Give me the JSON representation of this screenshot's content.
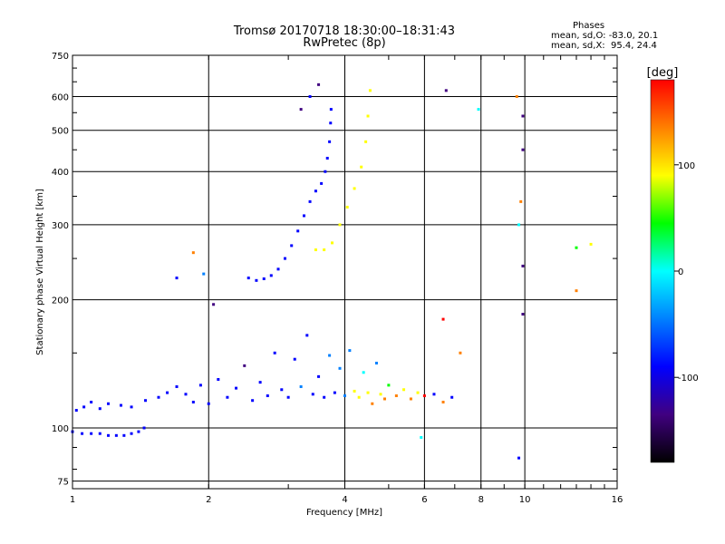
{
  "header": {
    "title_line1": "Tromsø 20170718 18:30:00–18:31:43",
    "title_line2": "RwPretec (8p)",
    "phases_title": "Phases",
    "phases_line1": "mean, sd,O: -83.0, 20.1",
    "phases_line2": "mean, sd,X:  95.4, 24.4"
  },
  "chart_data": {
    "type": "scatter",
    "xlabel": "Frequency [MHz]",
    "ylabel": "Stationary phase Virtual Height [km]",
    "xscale": "log",
    "yscale": "log",
    "xlim": [
      1,
      16
    ],
    "ylim": [
      72,
      750
    ],
    "xticks": [
      1,
      2,
      4,
      6,
      8,
      10,
      16
    ],
    "xtick_labels": [
      "1",
      "2",
      "4",
      "6",
      "8",
      "10",
      "16"
    ],
    "yticks": [
      75,
      100,
      200,
      300,
      400,
      500,
      600,
      750
    ],
    "ytick_labels": [
      "75",
      "100",
      "200",
      "300",
      "400",
      "500",
      "600",
      "750"
    ],
    "grid": true,
    "colorbar": {
      "label": "[deg]",
      "range": [
        -180,
        180
      ],
      "ticks": [
        100,
        0,
        -100
      ],
      "tick_labels": [
        "100",
        "0",
        "-100"
      ],
      "colors": [
        "#ff0000",
        "#ff8000",
        "#ffff00",
        "#00ff00",
        "#00ffff",
        "#0080ff",
        "#0000ff",
        "#400080",
        "#000000"
      ]
    },
    "points": [
      [
        1.0,
        98,
        -110
      ],
      [
        1.05,
        97,
        -100
      ],
      [
        1.1,
        97,
        -105
      ],
      [
        1.15,
        97,
        -100
      ],
      [
        1.2,
        96,
        -110
      ],
      [
        1.25,
        96,
        -105
      ],
      [
        1.3,
        96,
        -100
      ],
      [
        1.35,
        97,
        -110
      ],
      [
        1.4,
        98,
        -105
      ],
      [
        1.44,
        100,
        -100
      ],
      [
        1.02,
        110,
        -90
      ],
      [
        1.06,
        112,
        -85
      ],
      [
        1.1,
        115,
        -100
      ],
      [
        1.15,
        111,
        -95
      ],
      [
        1.2,
        114,
        -110
      ],
      [
        1.28,
        113,
        -90
      ],
      [
        1.35,
        112,
        -100
      ],
      [
        1.45,
        116,
        -85
      ],
      [
        1.55,
        118,
        -95
      ],
      [
        1.62,
        121,
        -90
      ],
      [
        1.7,
        125,
        -100
      ],
      [
        1.78,
        120,
        -80
      ],
      [
        1.85,
        115,
        -110
      ],
      [
        1.92,
        126,
        -95
      ],
      [
        2.0,
        114,
        -85
      ],
      [
        2.1,
        130,
        -100
      ],
      [
        2.2,
        118,
        -80
      ],
      [
        2.3,
        124,
        -90
      ],
      [
        2.4,
        140,
        -120
      ],
      [
        2.5,
        116,
        -85
      ],
      [
        2.6,
        128,
        -95
      ],
      [
        2.7,
        119,
        -70
      ],
      [
        2.8,
        150,
        -100
      ],
      [
        2.9,
        123,
        -85
      ],
      [
        3.0,
        118,
        -90
      ],
      [
        3.1,
        145,
        -110
      ],
      [
        3.2,
        125,
        -60
      ],
      [
        3.3,
        165,
        -80
      ],
      [
        3.4,
        120,
        -100
      ],
      [
        3.5,
        132,
        -70
      ],
      [
        3.6,
        118,
        -90
      ],
      [
        3.7,
        148,
        -50
      ],
      [
        3.8,
        121,
        -95
      ],
      [
        3.9,
        138,
        -40
      ],
      [
        4.0,
        119,
        -30
      ],
      [
        4.1,
        152,
        -60
      ],
      [
        4.2,
        122,
        90
      ],
      [
        4.3,
        118,
        110
      ],
      [
        4.4,
        135,
        -20
      ],
      [
        4.5,
        121,
        100
      ],
      [
        4.6,
        114,
        120
      ],
      [
        4.7,
        142,
        -40
      ],
      [
        4.8,
        120,
        95
      ],
      [
        4.9,
        117,
        140
      ],
      [
        5.0,
        126,
        60
      ],
      [
        5.2,
        119,
        130
      ],
      [
        5.4,
        123,
        80
      ],
      [
        5.6,
        117,
        150
      ],
      [
        5.8,
        121,
        90
      ],
      [
        6.0,
        119,
        160
      ],
      [
        6.3,
        120,
        -80
      ],
      [
        6.6,
        115,
        120
      ],
      [
        6.9,
        118,
        -100
      ],
      [
        2.45,
        225,
        -100
      ],
      [
        2.55,
        222,
        -110
      ],
      [
        2.65,
        224,
        -95
      ],
      [
        2.75,
        228,
        -105
      ],
      [
        2.85,
        236,
        -100
      ],
      [
        2.95,
        250,
        -95
      ],
      [
        3.05,
        268,
        -100
      ],
      [
        3.15,
        290,
        -105
      ],
      [
        3.25,
        315,
        -100
      ],
      [
        3.35,
        340,
        -95
      ],
      [
        3.45,
        360,
        -100
      ],
      [
        3.55,
        375,
        -105
      ],
      [
        3.62,
        400,
        -95
      ],
      [
        3.66,
        430,
        -100
      ],
      [
        3.7,
        470,
        -105
      ],
      [
        3.72,
        520,
        -100
      ],
      [
        3.73,
        560,
        -110
      ],
      [
        3.2,
        560,
        -120
      ],
      [
        3.35,
        600,
        -110
      ],
      [
        3.5,
        640,
        -120
      ],
      [
        3.45,
        262,
        100
      ],
      [
        3.6,
        262,
        110
      ],
      [
        3.75,
        272,
        95
      ],
      [
        3.9,
        300,
        90
      ],
      [
        4.05,
        330,
        85
      ],
      [
        4.2,
        365,
        95
      ],
      [
        4.35,
        410,
        100
      ],
      [
        4.45,
        470,
        105
      ],
      [
        4.5,
        540,
        110
      ],
      [
        4.55,
        620,
        100
      ],
      [
        6.7,
        620,
        -130
      ],
      [
        7.9,
        560,
        20
      ],
      [
        9.6,
        600,
        130
      ],
      [
        9.9,
        540,
        -140
      ],
      [
        9.9,
        450,
        -120
      ],
      [
        9.8,
        340,
        120
      ],
      [
        9.7,
        300,
        10
      ],
      [
        9.9,
        240,
        -150
      ],
      [
        13.0,
        265,
        30
      ],
      [
        14.0,
        270,
        100
      ],
      [
        13.0,
        210,
        150
      ],
      [
        9.9,
        185,
        -120
      ],
      [
        6.6,
        180,
        170
      ],
      [
        9.7,
        85,
        -100
      ],
      [
        7.2,
        150,
        140
      ],
      [
        1.85,
        258,
        150
      ],
      [
        1.7,
        225,
        -90
      ],
      [
        1.95,
        230,
        -50
      ],
      [
        2.05,
        195,
        -120
      ],
      [
        5.9,
        95,
        20
      ]
    ]
  }
}
